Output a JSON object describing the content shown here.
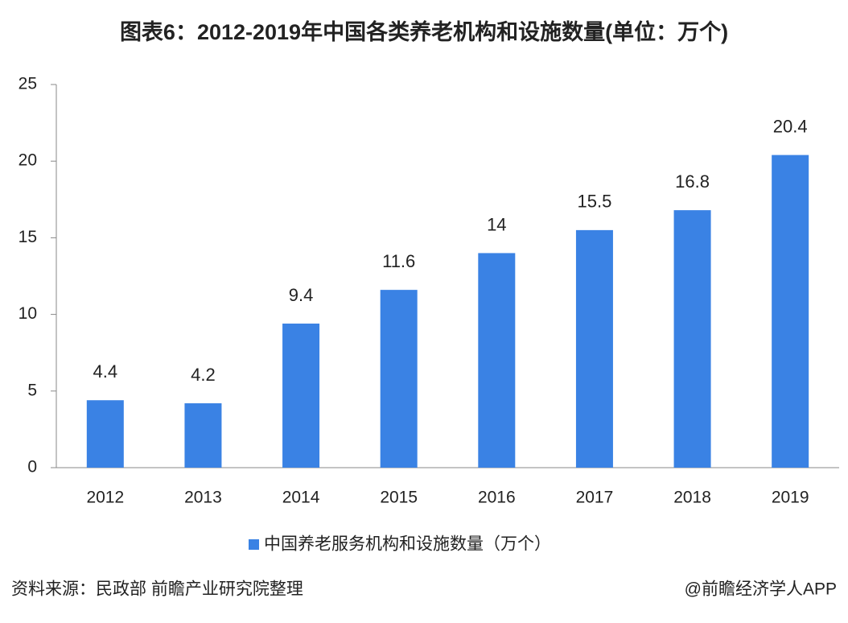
{
  "chart_data": {
    "type": "bar",
    "title": "图表6：2012-2019年中国各类养老机构和设施数量(单位：万个)",
    "categories": [
      "2012",
      "2013",
      "2014",
      "2015",
      "2016",
      "2017",
      "2018",
      "2019"
    ],
    "series": [
      {
        "name": "中国养老服务机构和设施数量（万个）",
        "color": "#3a82e4",
        "values": [
          4.4,
          4.2,
          9.4,
          11.6,
          14,
          15.5,
          16.8,
          20.4
        ]
      }
    ],
    "ylim": [
      0,
      25
    ],
    "yticks": [
      0,
      5,
      10,
      15,
      20,
      25
    ],
    "source": "资料来源：民政部 前瞻产业研究院整理",
    "credit": "@前瞻经济学人APP"
  }
}
